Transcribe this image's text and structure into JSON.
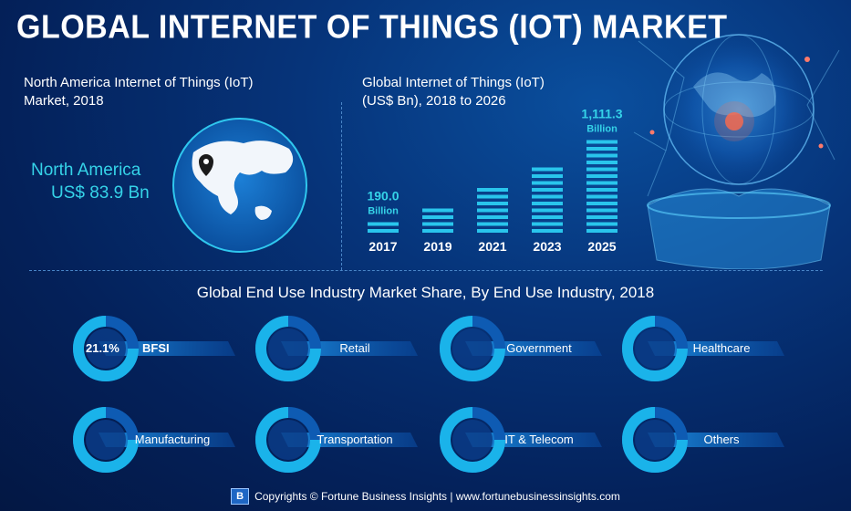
{
  "title": "GLOBAL INTERNET OF THINGS (IOT) MARKET",
  "north_america": {
    "title_line1": "North America Internet of Things (IoT)",
    "title_line2": "Market, 2018",
    "region": "North America",
    "value": "US$ 83.9 Bn"
  },
  "chart_data": {
    "type": "bar",
    "title_line1": "Global Internet of Things (IoT)",
    "title_line2": "(US$ Bn), 2018 to 2026",
    "categories": [
      "2017",
      "2019",
      "2021",
      "2023",
      "2025"
    ],
    "values": [
      190.0,
      330,
      560,
      810,
      1111.3
    ],
    "ylim": [
      0,
      1200
    ],
    "data_labels": [
      {
        "category": "2017",
        "value": "190.0",
        "unit": "Billion"
      },
      {
        "category": "2025",
        "value": "1,111.3",
        "unit": "Billion"
      }
    ],
    "colors": {
      "bar": "#29c5ec",
      "label": "#35d3e8"
    }
  },
  "end_use": {
    "title": "Global End Use Industry Market Share, By End Use Industry, 2018",
    "items": [
      {
        "name": "BFSI",
        "share": "21.1%"
      },
      {
        "name": "Retail"
      },
      {
        "name": "Government"
      },
      {
        "name": "Healthcare"
      },
      {
        "name": "Manufacturing"
      },
      {
        "name": "Transportation"
      },
      {
        "name": "IT & Telecom"
      },
      {
        "name": "Others"
      }
    ]
  },
  "footer": {
    "logo": "B",
    "text": "Copyrights © Fortune Business Insights | www.fortunebusinessinsights.com"
  },
  "colors": {
    "accent": "#35d3e8",
    "ring": "#1aa9e0",
    "background": "#06347a"
  }
}
